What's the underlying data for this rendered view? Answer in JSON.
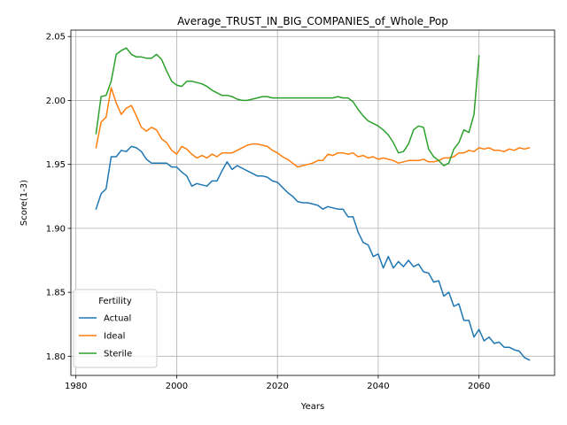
{
  "chart_data": {
    "type": "line",
    "title": "Average_TRUST_IN_BIG_COMPANIES_of_Whole_Pop",
    "xlabel": "Years",
    "ylabel": "Score(1-3)",
    "xlim": [
      1979,
      2075
    ],
    "ylim": [
      1.785,
      2.055
    ],
    "xticks": [
      1980,
      2000,
      2020,
      2040,
      2060
    ],
    "yticks": [
      1.8,
      1.85,
      1.9,
      1.95,
      2.0,
      2.05
    ],
    "xtick_labels": [
      "1980",
      "2000",
      "2020",
      "2040",
      "2060"
    ],
    "ytick_labels": [
      "1.80",
      "1.85",
      "1.90",
      "1.95",
      "2.00",
      "2.05"
    ],
    "grid": true,
    "legend": {
      "title": "Fertility",
      "placement": "lower-left"
    },
    "series": [
      {
        "name": "Actual",
        "color": "#1f77b4",
        "x": [
          1984,
          1985,
          1986,
          1987,
          1988,
          1989,
          1990,
          1991,
          1992,
          1993,
          1994,
          1995,
          1996,
          1997,
          1998,
          1999,
          2000,
          2001,
          2002,
          2003,
          2004,
          2005,
          2006,
          2007,
          2008,
          2009,
          2010,
          2011,
          2012,
          2013,
          2014,
          2015,
          2016,
          2017,
          2018,
          2019,
          2020,
          2021,
          2022,
          2023,
          2024,
          2025,
          2026,
          2027,
          2028,
          2029,
          2030,
          2031,
          2032,
          2033,
          2034,
          2035,
          2036,
          2037,
          2038,
          2039,
          2040,
          2041,
          2042,
          2043,
          2044,
          2045,
          2046,
          2047,
          2048,
          2049,
          2050,
          2051,
          2052,
          2053,
          2054,
          2055,
          2056,
          2057,
          2058,
          2059,
          2060,
          2061,
          2062,
          2063,
          2064,
          2065,
          2066,
          2067,
          2068,
          2069,
          2070
        ],
        "y": [
          1.915,
          1.927,
          1.931,
          1.956,
          1.956,
          1.961,
          1.96,
          1.964,
          1.963,
          1.96,
          1.954,
          1.951,
          1.951,
          1.951,
          1.951,
          1.948,
          1.948,
          1.944,
          1.941,
          1.933,
          1.935,
          1.934,
          1.933,
          1.937,
          1.937,
          1.945,
          1.952,
          1.946,
          1.949,
          1.947,
          1.945,
          1.943,
          1.941,
          1.941,
          1.94,
          1.937,
          1.936,
          1.932,
          1.928,
          1.925,
          1.921,
          1.92,
          1.92,
          1.919,
          1.918,
          1.915,
          1.917,
          1.916,
          1.915,
          1.915,
          1.909,
          1.909,
          1.897,
          1.889,
          1.887,
          1.878,
          1.88,
          1.869,
          1.878,
          1.869,
          1.874,
          1.87,
          1.875,
          1.87,
          1.872,
          1.866,
          1.865,
          1.858,
          1.859,
          1.847,
          1.85,
          1.839,
          1.841,
          1.828,
          1.828,
          1.815,
          1.821,
          1.812,
          1.815,
          1.81,
          1.811,
          1.807,
          1.807,
          1.805,
          1.804,
          1.799,
          1.797
        ]
      },
      {
        "name": "Ideal",
        "color": "#ff7f0e",
        "x": [
          1984,
          1985,
          1986,
          1987,
          1988,
          1989,
          1990,
          1991,
          1992,
          1993,
          1994,
          1995,
          1996,
          1997,
          1998,
          1999,
          2000,
          2001,
          2002,
          2003,
          2004,
          2005,
          2006,
          2007,
          2008,
          2009,
          2010,
          2011,
          2012,
          2013,
          2014,
          2015,
          2016,
          2017,
          2018,
          2019,
          2020,
          2021,
          2022,
          2023,
          2024,
          2025,
          2026,
          2027,
          2028,
          2029,
          2030,
          2031,
          2032,
          2033,
          2034,
          2035,
          2036,
          2037,
          2038,
          2039,
          2040,
          2041,
          2042,
          2043,
          2044,
          2045,
          2046,
          2047,
          2048,
          2049,
          2050,
          2051,
          2052,
          2053,
          2054,
          2055,
          2056,
          2057,
          2058,
          2059,
          2060,
          2061,
          2062,
          2063,
          2064,
          2065,
          2066,
          2067,
          2068,
          2069,
          2070
        ],
        "y": [
          1.963,
          1.983,
          1.987,
          2.01,
          1.998,
          1.989,
          1.994,
          1.996,
          1.988,
          1.979,
          1.976,
          1.979,
          1.977,
          1.97,
          1.967,
          1.961,
          1.958,
          1.964,
          1.962,
          1.958,
          1.955,
          1.957,
          1.955,
          1.958,
          1.956,
          1.959,
          1.959,
          1.959,
          1.961,
          1.963,
          1.965,
          1.966,
          1.966,
          1.965,
          1.964,
          1.961,
          1.959,
          1.956,
          1.954,
          1.951,
          1.948,
          1.949,
          1.95,
          1.951,
          1.953,
          1.953,
          1.958,
          1.957,
          1.959,
          1.959,
          1.958,
          1.959,
          1.956,
          1.957,
          1.955,
          1.956,
          1.954,
          1.955,
          1.954,
          1.953,
          1.951,
          1.952,
          1.953,
          1.953,
          1.953,
          1.954,
          1.952,
          1.952,
          1.953,
          1.955,
          1.955,
          1.956,
          1.959,
          1.959,
          1.961,
          1.96,
          1.963,
          1.962,
          1.963,
          1.961,
          1.961,
          1.96,
          1.962,
          1.961,
          1.963,
          1.962,
          1.963
        ]
      },
      {
        "name": "Sterile",
        "color": "#2ca02c",
        "x": [
          1984,
          1985,
          1986,
          1987,
          1988,
          1989,
          1990,
          1991,
          1992,
          1993,
          1994,
          1995,
          1996,
          1997,
          1998,
          1999,
          2000,
          2001,
          2002,
          2003,
          2004,
          2005,
          2006,
          2007,
          2008,
          2009,
          2010,
          2011,
          2012,
          2013,
          2014,
          2015,
          2016,
          2017,
          2018,
          2019,
          2020,
          2021,
          2022,
          2023,
          2024,
          2025,
          2026,
          2027,
          2028,
          2029,
          2030,
          2031,
          2032,
          2033,
          2034,
          2035,
          2036,
          2037,
          2038,
          2039,
          2040,
          2041,
          2042,
          2043,
          2044,
          2045,
          2046,
          2047,
          2048,
          2049,
          2050,
          2051,
          2052,
          2053,
          2054,
          2055,
          2056,
          2057,
          2058,
          2059,
          2060
        ],
        "y": [
          1.974,
          2.003,
          2.004,
          2.015,
          2.036,
          2.039,
          2.041,
          2.036,
          2.034,
          2.034,
          2.033,
          2.033,
          2.036,
          2.032,
          2.023,
          2.015,
          2.012,
          2.011,
          2.015,
          2.015,
          2.014,
          2.013,
          2.011,
          2.008,
          2.006,
          2.004,
          2.004,
          2.003,
          2.001,
          2.0,
          2.0,
          2.001,
          2.002,
          2.003,
          2.003,
          2.002,
          2.002,
          2.002,
          2.002,
          2.002,
          2.002,
          2.002,
          2.002,
          2.002,
          2.002,
          2.002,
          2.002,
          2.002,
          2.003,
          2.002,
          2.002,
          1.999,
          1.993,
          1.988,
          1.984,
          1.982,
          1.98,
          1.977,
          1.973,
          1.967,
          1.959,
          1.96,
          1.966,
          1.977,
          1.98,
          1.979,
          1.962,
          1.956,
          1.953,
          1.949,
          1.951,
          1.962,
          1.967,
          1.977,
          1.975,
          1.989,
          2.035
        ]
      }
    ]
  }
}
